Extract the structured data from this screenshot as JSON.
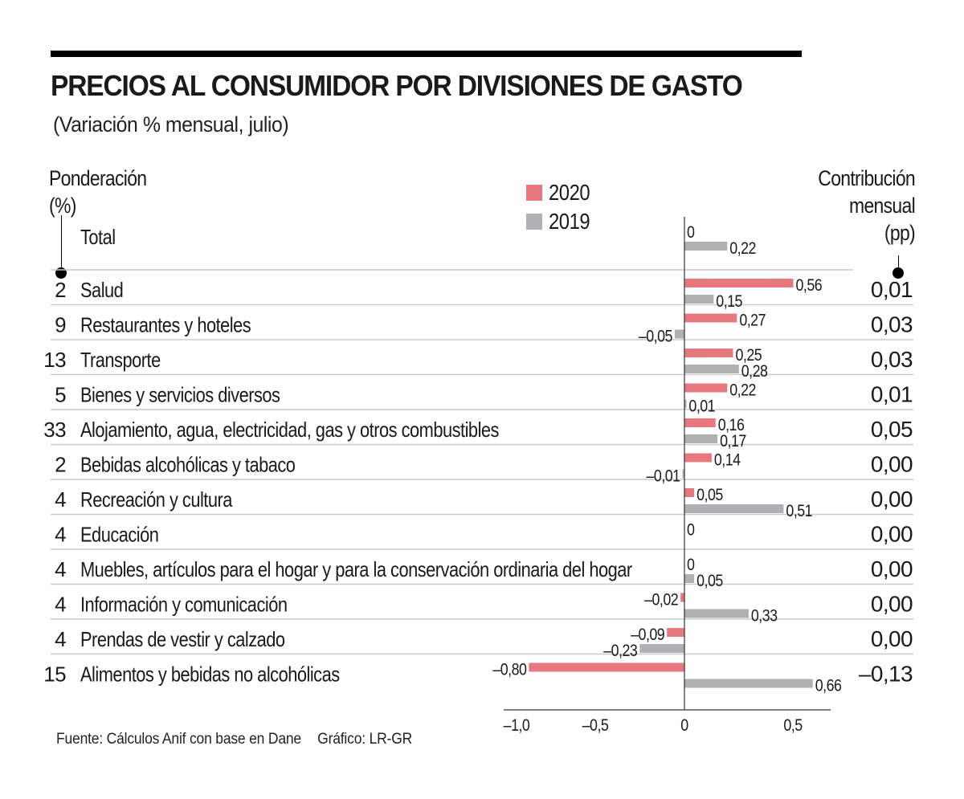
{
  "header": {
    "title": "PRECIOS AL CONSUMIDOR POR DIVISIONES DE GASTO",
    "subtitle": "(Variación % mensual, julio)",
    "left_column_title_line1": "Ponderación",
    "left_column_title_line2": "(%)",
    "right_column_title_line1": "Contribución",
    "right_column_title_line2": "mensual",
    "right_column_title_line3": "(pp)"
  },
  "footer": {
    "source": "Fuente: Cálculos Anif con base en Dane",
    "credit": "Gráfico: LR-GR"
  },
  "colors": {
    "series_2020": "#e87880",
    "series_2019": "#b0afb4",
    "separator": "#cccccc",
    "axis": "#333333"
  },
  "chart_data": {
    "type": "bar",
    "orientation": "horizontal",
    "title": "PRECIOS AL CONSUMIDOR POR DIVISIONES DE GASTO",
    "subtitle": "(Variación % mensual, julio)",
    "xlabel": "",
    "ylabel": "",
    "xlim": [
      -1.0,
      0.65
    ],
    "x_ticks": [
      -1.0,
      -0.5,
      0,
      0.5
    ],
    "x_tick_labels": [
      "–1,0",
      "–0,5",
      "0",
      "0,5"
    ],
    "grid": false,
    "legend": {
      "position": "top-center",
      "entries": [
        "2020",
        "2019"
      ]
    },
    "series": [
      {
        "name": "2020",
        "color": "#e87880",
        "values": [
          0,
          0.56,
          0.27,
          0.25,
          0.22,
          0.16,
          0.14,
          0.05,
          0,
          0,
          -0.02,
          -0.09,
          -0.8
        ],
        "labels": [
          "0",
          "0,56",
          "0,27",
          "0,25",
          "0,22",
          "0,16",
          "0,14",
          "0,05",
          "0",
          "0",
          "–0,02",
          "–0,09",
          "–0,80"
        ]
      },
      {
        "name": "2019",
        "color": "#b0afb4",
        "values": [
          0.22,
          0.15,
          -0.05,
          0.28,
          0.01,
          0.17,
          -0.01,
          0.51,
          null,
          0.05,
          0.33,
          -0.23,
          0.66
        ],
        "labels": [
          "0,22",
          "0,15",
          "–0,05",
          "0,28",
          "0,01",
          "0,17",
          "–0,01",
          "0,51",
          "",
          "0,05",
          "0,33",
          "–0,23",
          "0,66"
        ]
      }
    ],
    "categories": [
      "Total",
      "Salud",
      "Restaurantes y hoteles",
      "Transporte",
      "Bienes y servicios diversos",
      "Alojamiento, agua, electricidad, gas y otros combustibles",
      "Bebidas alcohólicas y tabaco",
      "Recreación y cultura",
      "Educación",
      "Muebles, artículos para el hogar y para la conservación ordinaria del hogar",
      "Información y comunicación",
      "Prendas de vestir y calzado",
      "Alimentos y bebidas no alcohólicas"
    ],
    "weights": [
      "",
      "2",
      "9",
      "13",
      "5",
      "33",
      "2",
      "4",
      "4",
      "4",
      "4",
      "4",
      "15"
    ],
    "contributions": [
      "",
      "0,01",
      "0,03",
      "0,03",
      "0,01",
      "0,05",
      "0,00",
      "0,00",
      "0,00",
      "0,00",
      "0,00",
      "0,00",
      "–0,13"
    ]
  }
}
